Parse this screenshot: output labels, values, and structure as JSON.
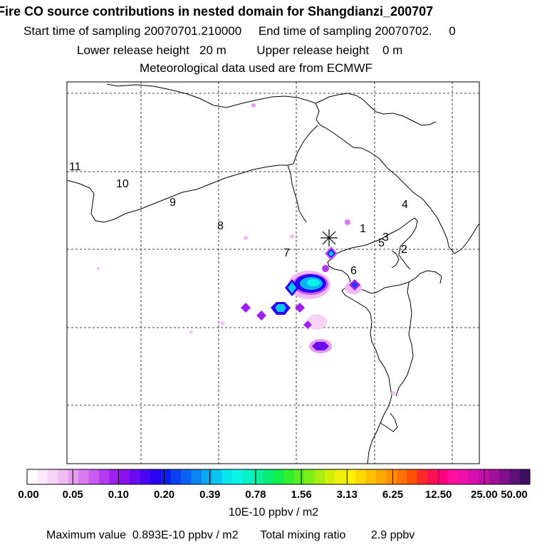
{
  "header": {
    "title": "Fire CO source contributions in nested domain for Shangdianzi_200707",
    "sampling_line": "Start time of sampling 20070701.210000     End time of sampling 20070702.     0",
    "release_line": "Lower release height   20 m         Upper release height    0 m",
    "met_line": "Meteorological data used are from ECMWF"
  },
  "map": {
    "receptor_marker": "asterisk-icon",
    "region_labels": [
      "11",
      "10",
      "9",
      "8",
      "7",
      "1",
      "4",
      "3",
      "5",
      "2",
      "6"
    ]
  },
  "colorbar": {
    "tick_labels": [
      "0.00",
      "0.05",
      "0.10",
      "0.20",
      "0.39",
      "0.78",
      "1.56",
      "3.13",
      "6.25",
      "12.50",
      "25.00",
      "50.00"
    ],
    "unit": "10E-10 ppbv / m2",
    "colors": [
      "#ffffff",
      "#fbe8fb",
      "#f6d2f7",
      "#f1bcf3",
      "#e79cf0",
      "#d97ef0",
      "#c85cf0",
      "#b53bf0",
      "#9f1ff0",
      "#8a12ee",
      "#6a0cf0",
      "#4a06f2",
      "#2a02f2",
      "#0a1ef2",
      "#0a40f2",
      "#0a62f2",
      "#0a84f2",
      "#0aa6f2",
      "#0ac6f2",
      "#0ae6f2",
      "#0af6e8",
      "#0af0c8",
      "#0aeea0",
      "#0aee78",
      "#10ee50",
      "#30ee30",
      "#58ee20",
      "#80ee18",
      "#a8ee10",
      "#d0f00a",
      "#eef00a",
      "#fff000",
      "#ffd800",
      "#ffc000",
      "#ffa800",
      "#ff9000",
      "#ff7000",
      "#ff5000",
      "#ff2a2a",
      "#ff1050",
      "#ff0080",
      "#ff10a0",
      "#f010b0",
      "#d810b0",
      "#c010a8",
      "#a0109a",
      "#80108a",
      "#60107a",
      "#401060"
    ]
  },
  "footer": {
    "max_line": "Maximum value  0.893E-10 ppbv / m2       Total mixing ratio        2.9 ppbv"
  }
}
